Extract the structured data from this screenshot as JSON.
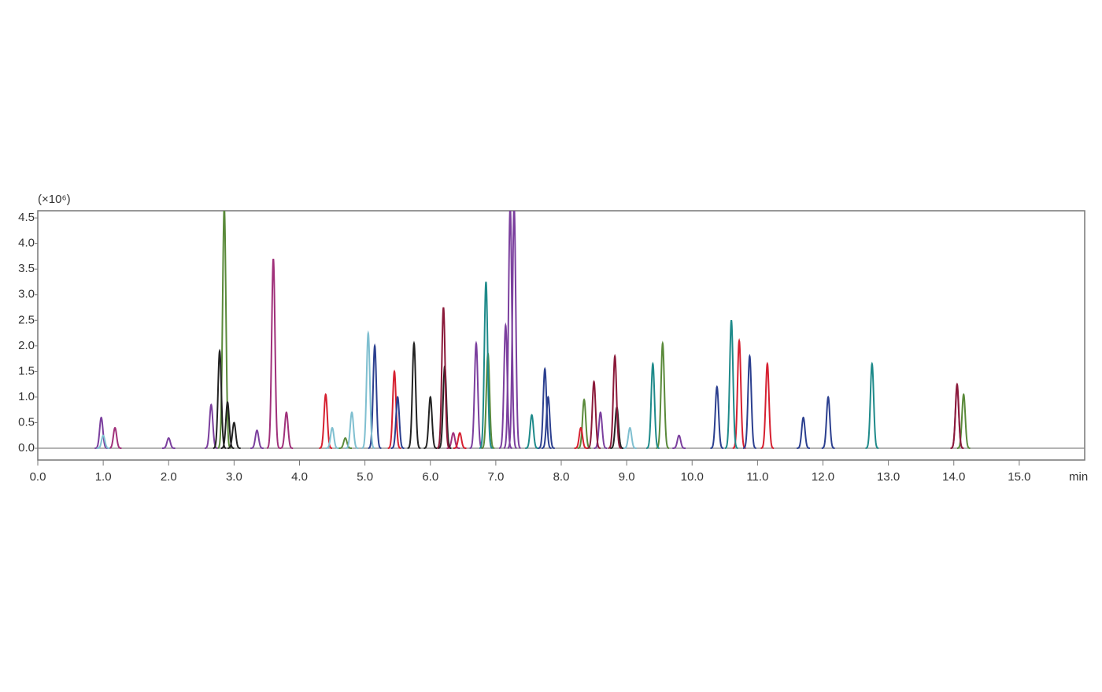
{
  "chart_data": {
    "type": "chromatogram",
    "y_unit_label": "(×10⁶)",
    "x_label": "min",
    "xlim": [
      0,
      16.0
    ],
    "ylim": [
      -0.23,
      4.64
    ],
    "xticks": [
      {
        "value": 0,
        "label": "0.0"
      },
      {
        "value": 1,
        "label": "1.0"
      },
      {
        "value": 2,
        "label": "2.0"
      },
      {
        "value": 3,
        "label": "3.0"
      },
      {
        "value": 4,
        "label": "4.0"
      },
      {
        "value": 5,
        "label": "5.0"
      },
      {
        "value": 6,
        "label": "6.0"
      },
      {
        "value": 7,
        "label": "7.0"
      },
      {
        "value": 8,
        "label": "8.0"
      },
      {
        "value": 9,
        "label": "9.0"
      },
      {
        "value": 10,
        "label": "10.0"
      },
      {
        "value": 11,
        "label": "11.0"
      },
      {
        "value": 12,
        "label": "12.0"
      },
      {
        "value": 13,
        "label": "13.0"
      },
      {
        "value": 14,
        "label": "14.0"
      },
      {
        "value": 15,
        "label": "15.0"
      }
    ],
    "yticks": [
      {
        "value": 0,
        "label": "0.0"
      },
      0.5,
      {
        "value": 1,
        "label": "1.0"
      },
      1.5,
      {
        "value": 2,
        "label": "2.0"
      },
      2.5,
      {
        "value": 3,
        "label": "3.0"
      },
      3.5,
      {
        "value": 4,
        "label": "4.0"
      },
      4.5
    ],
    "series": [
      {
        "color": "#7b3f9e",
        "x": [
          0.97,
          2.0,
          2.65,
          3.35,
          6.7,
          7.15,
          7.22,
          7.28,
          8.6,
          9.8
        ],
        "values": [
          0.6,
          0.2,
          0.85,
          0.35,
          2.05,
          2.4,
          4.7,
          4.7,
          0.7,
          0.25
        ]
      },
      {
        "color": "#5a8a3a",
        "x": [
          2.85,
          4.7,
          6.88,
          8.35,
          9.55,
          14.15
        ],
        "values": [
          4.7,
          0.2,
          1.85,
          0.95,
          2.05,
          1.05
        ]
      },
      {
        "color": "#a0307a",
        "x": [
          1.18,
          3.6,
          3.8,
          6.35,
          14.05
        ],
        "values": [
          0.4,
          3.7,
          0.7,
          0.3,
          1.2
        ]
      },
      {
        "color": "#222222",
        "x": [
          2.78,
          2.9,
          3.0,
          5.75,
          6.0,
          6.22,
          8.85
        ],
        "values": [
          1.9,
          0.9,
          0.5,
          2.05,
          1.0,
          1.6,
          0.8
        ]
      },
      {
        "color": "#d62030",
        "x": [
          4.4,
          5.45,
          6.45,
          8.3,
          10.72,
          11.15
        ],
        "values": [
          1.05,
          1.5,
          0.3,
          0.4,
          2.1,
          1.65
        ]
      },
      {
        "color": "#2b3f8f",
        "x": [
          5.15,
          5.5,
          7.75,
          7.8,
          10.38,
          10.88,
          11.7,
          12.08
        ],
        "values": [
          2.0,
          1.0,
          1.55,
          1.0,
          1.2,
          1.8,
          0.6,
          1.0
        ]
      },
      {
        "color": "#1e8a8a",
        "x": [
          6.85,
          9.4,
          10.6,
          12.75,
          7.55
        ],
        "values": [
          3.25,
          1.65,
          2.5,
          1.65,
          0.65
        ]
      },
      {
        "color": "#7fbfd0",
        "x": [
          5.05,
          4.8,
          1.0,
          9.05,
          4.5
        ],
        "values": [
          2.25,
          0.7,
          0.25,
          0.4,
          0.4
        ]
      },
      {
        "color": "#8b1a3a",
        "x": [
          6.2,
          8.5,
          8.82,
          14.05
        ],
        "values": [
          2.75,
          1.3,
          1.8,
          1.25
        ]
      }
    ]
  }
}
